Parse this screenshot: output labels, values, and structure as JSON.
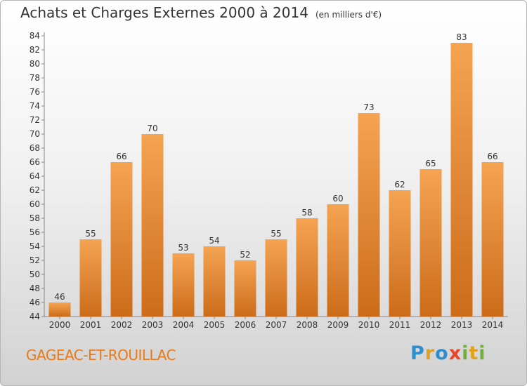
{
  "header": {
    "title": "Achats et Charges Externes 2000 à 2014",
    "unit": "(en milliers d'€)"
  },
  "footer": {
    "place": "GAGEAC-ET-ROUILLAC",
    "brand": "Proxiti"
  },
  "colors": {
    "bar_light": "#f5a452",
    "bar_dark": "#cc6c1a",
    "place_text": "#e87a19"
  },
  "chart_data": {
    "type": "bar",
    "title": "Achats et Charges Externes 2000 à 2014",
    "subtitle": "(en milliers d'€)",
    "xlabel": "",
    "ylabel": "",
    "categories": [
      "2000",
      "2001",
      "2002",
      "2003",
      "2004",
      "2005",
      "2006",
      "2007",
      "2008",
      "2009",
      "2010",
      "2011",
      "2012",
      "2013",
      "2014"
    ],
    "values": [
      46,
      55,
      66,
      70,
      53,
      54,
      52,
      55,
      58,
      60,
      73,
      62,
      65,
      83,
      66
    ],
    "ylim": [
      44,
      84
    ],
    "yticks": [
      44,
      46,
      48,
      50,
      52,
      54,
      56,
      58,
      60,
      62,
      64,
      66,
      68,
      70,
      72,
      74,
      76,
      78,
      80,
      82,
      84
    ],
    "grid": false,
    "data_labels": true
  }
}
